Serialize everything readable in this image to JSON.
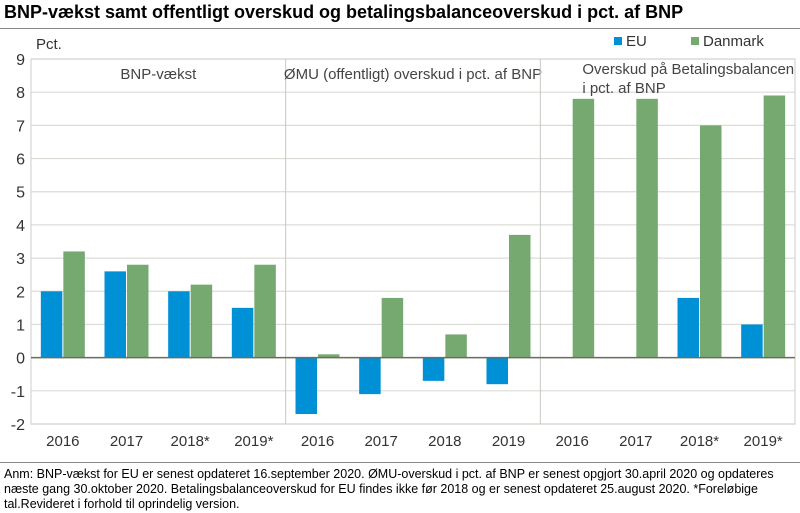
{
  "title": "BNP-vækst samt offentligt overskud og betalingsbalanceoverskud i pct. af BNP",
  "note": "Anm: BNP-vækst for EU er senest opdateret 16.september 2020. ØMU-overskud i pct. af BNP er senest opgjort 30.april 2020 og opdateres næste gang 30.oktober 2020. Betalingsbalanceoverskud for EU findes ikke før 2018 og er senest opdateret 25.august 2020. *Foreløbige tal.Revideret i forhold til oprindelig version.",
  "chart_data": {
    "type": "bar",
    "ylabel": "Pct.",
    "ylim": [
      -2,
      9
    ],
    "yticks": [
      "9",
      "8",
      "7",
      "6",
      "5",
      "4",
      "3",
      "2",
      "1",
      "0",
      "-1",
      "-2"
    ],
    "grid": true,
    "legend": "top-right",
    "colors": {
      "EU": "#0090d6",
      "Danmark": "#76a970"
    },
    "panels": [
      {
        "label": "BNP-vækst",
        "categories": [
          "2016",
          "2017",
          "2018*",
          "2019*"
        ],
        "series": [
          {
            "name": "EU",
            "values": [
              2.0,
              2.6,
              2.0,
              1.5
            ]
          },
          {
            "name": "Danmark",
            "values": [
              3.2,
              2.8,
              2.2,
              2.8
            ]
          }
        ]
      },
      {
        "label": "ØMU (offentligt) overskud i pct. af BNP",
        "categories": [
          "2016",
          "2017",
          "2018",
          "2019"
        ],
        "series": [
          {
            "name": "EU",
            "values": [
              -1.7,
              -1.1,
              -0.7,
              -0.8
            ]
          },
          {
            "name": "Danmark",
            "values": [
              0.1,
              1.8,
              0.7,
              3.7
            ]
          }
        ]
      },
      {
        "label": "Overskud på Betalingsbalancen i pct. af BNP",
        "label_lines": [
          "Overskud på Betalingsbalancen",
          "i pct. af BNP"
        ],
        "categories": [
          "2016",
          "2017",
          "2018*",
          "2019*"
        ],
        "series": [
          {
            "name": "EU",
            "values": [
              null,
              null,
              1.8,
              1.0
            ]
          },
          {
            "name": "Danmark",
            "values": [
              7.8,
              7.8,
              7.0,
              7.9
            ]
          }
        ]
      }
    ]
  }
}
